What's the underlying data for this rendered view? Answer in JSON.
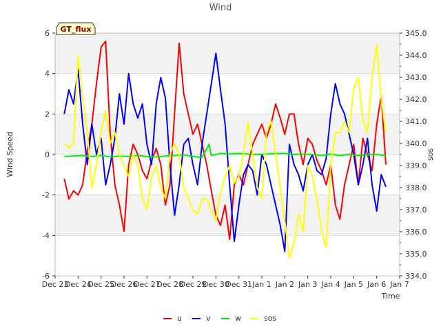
{
  "chart_data": {
    "type": "line",
    "title": "Wind",
    "xlabel": "Time",
    "ylabel": "Wind Speed",
    "y2label": "sos",
    "badge": "GT_flux",
    "ylim": [
      -6,
      6
    ],
    "y2lim": [
      334.0,
      345.0
    ],
    "xlim": [
      0,
      15
    ],
    "x_ticks": [
      0,
      1,
      2,
      3,
      4,
      5,
      6,
      7,
      8,
      9,
      10,
      11,
      12,
      13,
      14,
      15
    ],
    "x_tick_labels": [
      "Dec 23",
      "Dec 24",
      "Dec 25",
      "Dec 26",
      "Dec 27",
      "Dec 28",
      "Dec 29",
      "Dec 30",
      "Dec 31",
      "Jan 1",
      "Jan 2",
      "Jan 3",
      "Jan 4",
      "Jan 5",
      "Jan 6",
      "Jan 7"
    ],
    "y_ticks": [
      -6,
      -4,
      -2,
      0,
      2,
      4,
      6
    ],
    "y_tick_labels": [
      "-6",
      "-4",
      "-2",
      "0",
      "2",
      "4",
      "6"
    ],
    "y2_ticks": [
      334,
      335,
      336,
      337,
      338,
      339,
      340,
      341,
      342,
      343,
      344,
      345
    ],
    "y2_tick_labels": [
      "334.0",
      "335.0",
      "336.0",
      "337.0",
      "338.0",
      "339.0",
      "340.0",
      "341.0",
      "342.0",
      "343.0",
      "344.0",
      "345.0"
    ],
    "legend": [
      "u",
      "v",
      "w",
      "sos"
    ],
    "series": [
      {
        "name": "u",
        "color": "#ff0000",
        "axis": "left",
        "x": [
          0.4,
          0.6,
          0.8,
          1.0,
          1.2,
          1.4,
          1.6,
          1.8,
          2.0,
          2.2,
          2.4,
          2.6,
          2.8,
          3.0,
          3.2,
          3.4,
          3.6,
          3.8,
          4.0,
          4.2,
          4.4,
          4.6,
          4.8,
          5.0,
          5.2,
          5.4,
          5.6,
          5.8,
          6.0,
          6.2,
          6.4,
          6.6,
          6.8,
          7.0,
          7.2,
          7.4,
          7.6,
          7.8,
          8.0,
          8.2,
          8.4,
          8.6,
          8.8,
          9.0,
          9.2,
          9.4,
          9.6,
          9.8,
          10.0,
          10.2,
          10.4,
          10.6,
          10.8,
          11.0,
          11.2,
          11.4,
          11.6,
          11.8,
          12.0,
          12.2,
          12.4,
          12.6,
          12.8,
          13.0,
          13.2,
          13.4,
          13.6,
          13.8,
          14.0,
          14.2,
          14.4
        ],
        "y": [
          -1.2,
          -2.2,
          -1.8,
          -2.0,
          -1.5,
          0.2,
          1.5,
          3.5,
          5.3,
          5.6,
          1.0,
          -1.5,
          -2.5,
          -3.8,
          -0.5,
          0.5,
          0.0,
          -0.8,
          -1.2,
          -0.3,
          0.3,
          -0.5,
          -2.5,
          -1.5,
          2.0,
          5.5,
          3.0,
          2.0,
          1.0,
          1.5,
          0.5,
          -0.5,
          -1.8,
          -3.0,
          -3.5,
          -2.5,
          -4.2,
          -1.5,
          -1.0,
          -1.5,
          -0.5,
          0.5,
          1.0,
          1.5,
          0.8,
          1.5,
          2.5,
          1.8,
          1.0,
          2.0,
          2.0,
          0.5,
          -0.5,
          0.8,
          0.5,
          -0.3,
          -0.8,
          -1.5,
          -0.5,
          -2.5,
          -3.2,
          -1.5,
          -0.5,
          0.5,
          -1.5,
          0.8,
          0.0,
          -0.8,
          1.5,
          2.9,
          -0.5
        ]
      },
      {
        "name": "v",
        "color": "#0000ff",
        "axis": "left",
        "x": [
          0.4,
          0.6,
          0.8,
          1.0,
          1.2,
          1.4,
          1.6,
          1.8,
          2.0,
          2.2,
          2.4,
          2.6,
          2.8,
          3.0,
          3.2,
          3.4,
          3.6,
          3.8,
          4.0,
          4.2,
          4.4,
          4.6,
          4.8,
          5.0,
          5.2,
          5.4,
          5.6,
          5.8,
          6.0,
          6.2,
          6.4,
          6.6,
          6.8,
          7.0,
          7.2,
          7.4,
          7.6,
          7.8,
          8.0,
          8.2,
          8.4,
          8.6,
          8.8,
          9.0,
          9.2,
          9.4,
          9.6,
          9.8,
          10.0,
          10.2,
          10.4,
          10.6,
          10.8,
          11.0,
          11.2,
          11.4,
          11.6,
          11.8,
          12.0,
          12.2,
          12.4,
          12.6,
          12.8,
          13.0,
          13.2,
          13.4,
          13.6,
          13.8,
          14.0,
          14.2,
          14.4
        ],
        "y": [
          2.0,
          3.2,
          2.5,
          4.2,
          1.5,
          -0.5,
          1.5,
          0.0,
          0.8,
          -1.5,
          -0.5,
          0.8,
          3.0,
          1.5,
          4.0,
          2.5,
          1.8,
          2.5,
          0.5,
          -0.5,
          2.5,
          3.8,
          2.8,
          -0.5,
          -3.0,
          -1.5,
          0.5,
          0.8,
          -0.5,
          -1.5,
          0.5,
          2.0,
          3.5,
          5.0,
          3.2,
          1.5,
          -1.5,
          -4.3,
          -2.5,
          -1.0,
          -0.5,
          -0.8,
          -2.0,
          0.0,
          -0.5,
          -1.5,
          -2.5,
          -3.5,
          -4.8,
          0.5,
          -0.5,
          -1.0,
          -1.8,
          -0.5,
          0.0,
          -0.8,
          -1.0,
          -0.2,
          2.0,
          3.5,
          2.5,
          2.0,
          1.0,
          0.0,
          -1.5,
          -0.5,
          0.8,
          -1.5,
          -2.8,
          -1.0,
          -1.6
        ]
      },
      {
        "name": "w",
        "color": "#00ee00",
        "axis": "left",
        "x": [
          0.4,
          0.8,
          1.2,
          1.6,
          2.0,
          2.4,
          2.8,
          3.2,
          3.6,
          4.0,
          4.4,
          4.8,
          5.2,
          5.6,
          6.0,
          6.4,
          6.7,
          6.8,
          7.2,
          7.6,
          8.0,
          8.4,
          8.8,
          9.2,
          9.6,
          10.0,
          10.4,
          10.8,
          11.2,
          11.6,
          12.0,
          12.4,
          12.8,
          13.2,
          13.6,
          14.0,
          14.4
        ],
        "y": [
          -0.1,
          -0.08,
          -0.05,
          -0.1,
          -0.05,
          -0.12,
          -0.08,
          -0.1,
          -0.05,
          -0.1,
          -0.12,
          -0.08,
          -0.05,
          -0.02,
          -0.1,
          -0.15,
          0.5,
          -0.05,
          0.05,
          0.02,
          0.05,
          0.02,
          0.0,
          0.02,
          0.05,
          0.05,
          0.0,
          0.02,
          0.0,
          -0.05,
          0.02,
          -0.05,
          0.0,
          -0.05,
          -0.02,
          0.0,
          -0.05
        ]
      },
      {
        "name": "sos",
        "color": "#ffff00",
        "axis": "right",
        "x": [
          0.4,
          0.6,
          0.8,
          1.0,
          1.2,
          1.4,
          1.6,
          1.8,
          2.0,
          2.2,
          2.4,
          2.6,
          2.8,
          3.0,
          3.2,
          3.4,
          3.6,
          3.8,
          4.0,
          4.2,
          4.4,
          4.6,
          4.8,
          5.0,
          5.2,
          5.4,
          5.6,
          5.8,
          6.0,
          6.2,
          6.4,
          6.6,
          6.8,
          7.0,
          7.2,
          7.4,
          7.6,
          7.8,
          8.0,
          8.2,
          8.4,
          8.6,
          8.8,
          9.0,
          9.2,
          9.4,
          9.6,
          9.8,
          10.0,
          10.2,
          10.4,
          10.6,
          10.8,
          11.0,
          11.2,
          11.4,
          11.6,
          11.8,
          12.0,
          12.2,
          12.4,
          12.6,
          12.8,
          13.0,
          13.2,
          13.4,
          13.6,
          13.8,
          14.0,
          14.2,
          14.4
        ],
        "y": [
          340.0,
          339.8,
          340.0,
          344.0,
          342.0,
          340.5,
          338.0,
          339.0,
          340.5,
          341.5,
          340.0,
          340.5,
          339.5,
          339.0,
          338.5,
          339.5,
          339.0,
          337.5,
          337.0,
          338.5,
          339.0,
          338.0,
          337.5,
          339.5,
          340.0,
          339.5,
          338.0,
          337.5,
          337.0,
          336.8,
          337.5,
          337.5,
          337.0,
          336.5,
          337.8,
          338.5,
          339.0,
          338.2,
          338.5,
          339.5,
          341.0,
          339.5,
          338.0,
          337.5,
          340.5,
          341.0,
          339.5,
          338.0,
          336.5,
          334.8,
          335.5,
          336.8,
          336.0,
          339.0,
          338.5,
          337.5,
          336.0,
          335.3,
          339.0,
          340.5,
          340.5,
          341.0,
          340.5,
          342.5,
          343.0,
          341.0,
          340.5,
          343.0,
          344.5,
          342.0,
          340.5
        ]
      }
    ]
  }
}
